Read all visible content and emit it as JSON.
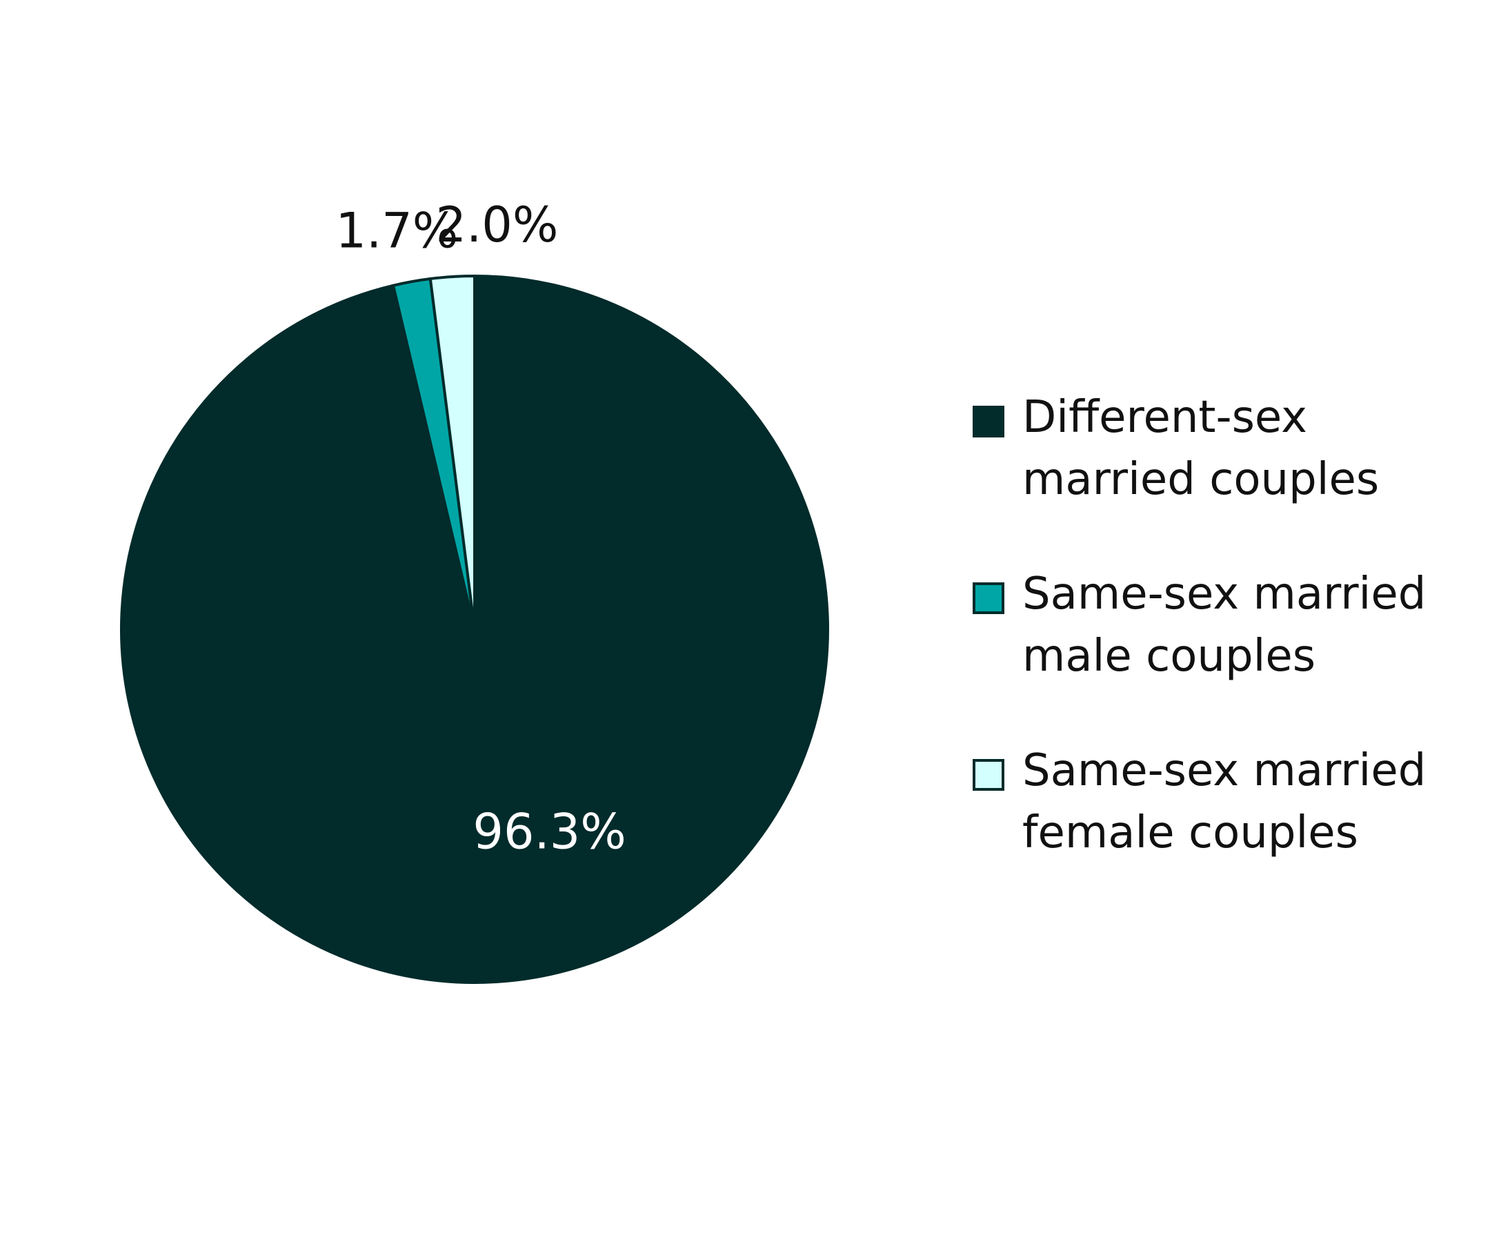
{
  "chart_data": {
    "type": "pie",
    "categories": [
      "Different-sex married couples",
      "Same-sex married male couples",
      "Same-sex married female couples"
    ],
    "values": [
      96.3,
      1.7,
      2.0
    ],
    "labels": [
      "96.3%",
      "1.7%",
      "2.0%"
    ],
    "colors": [
      "#022b2b",
      "#00a6a6",
      "#d4ffff"
    ],
    "label_colors": [
      "#ffffff",
      "#111111",
      "#111111"
    ],
    "legend_position": "right"
  }
}
